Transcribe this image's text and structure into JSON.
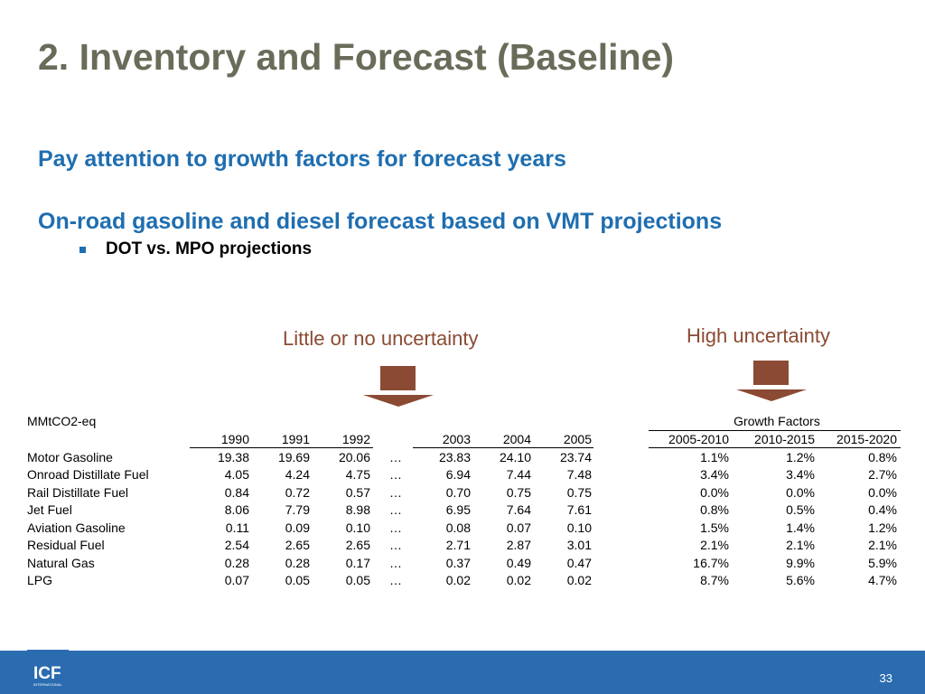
{
  "slide": {
    "title": "2. Inventory and Forecast (Baseline)",
    "subheading_1": "Pay attention to growth factors for forecast years",
    "subheading_2": "On-road gasoline and diesel forecast based on VMT projections",
    "bullet": "DOT vs. MPO projections",
    "label_low": "Little or no uncertainty",
    "label_high": "High uncertainty",
    "page_number": "33",
    "logo_text": "ICF",
    "logo_subtext": "INTERNATIONAL",
    "colors": {
      "title": "#6b6b5a",
      "heading": "#1f6eb0",
      "arrow": "#8b4a34",
      "footer": "#2b6cb0"
    }
  },
  "table": {
    "unit_label": "MMtCO2-eq",
    "growth_header": "Growth Factors",
    "ellipsis": "…",
    "year_headers": [
      "1990",
      "1991",
      "1992",
      "2003",
      "2004",
      "2005"
    ],
    "growth_headers": [
      "2005-2010",
      "2010-2015",
      "2015-2020"
    ],
    "rows": [
      {
        "name": "Motor Gasoline",
        "values": [
          "19.38",
          "19.69",
          "20.06",
          "23.83",
          "24.10",
          "23.74"
        ],
        "growth": [
          "1.1%",
          "1.2%",
          "0.8%"
        ]
      },
      {
        "name": "Onroad Distillate Fuel",
        "values": [
          "4.05",
          "4.24",
          "4.75",
          "6.94",
          "7.44",
          "7.48"
        ],
        "growth": [
          "3.4%",
          "3.4%",
          "2.7%"
        ]
      },
      {
        "name": "Rail Distillate Fuel",
        "values": [
          "0.84",
          "0.72",
          "0.57",
          "0.70",
          "0.75",
          "0.75"
        ],
        "growth": [
          "0.0%",
          "0.0%",
          "0.0%"
        ]
      },
      {
        "name": "Jet Fuel",
        "values": [
          "8.06",
          "7.79",
          "8.98",
          "6.95",
          "7.64",
          "7.61"
        ],
        "growth": [
          "0.8%",
          "0.5%",
          "0.4%"
        ]
      },
      {
        "name": "Aviation Gasoline",
        "values": [
          "0.11",
          "0.09",
          "0.10",
          "0.08",
          "0.07",
          "0.10"
        ],
        "growth": [
          "1.5%",
          "1.4%",
          "1.2%"
        ]
      },
      {
        "name": "Residual Fuel",
        "values": [
          "2.54",
          "2.65",
          "2.65",
          "2.71",
          "2.87",
          "3.01"
        ],
        "growth": [
          "2.1%",
          "2.1%",
          "2.1%"
        ]
      },
      {
        "name": "Natural Gas",
        "values": [
          "0.28",
          "0.28",
          "0.17",
          "0.37",
          "0.49",
          "0.47"
        ],
        "growth": [
          "16.7%",
          "9.9%",
          "5.9%"
        ]
      },
      {
        "name": "LPG",
        "values": [
          "0.07",
          "0.05",
          "0.05",
          "0.02",
          "0.02",
          "0.02"
        ],
        "growth": [
          "8.7%",
          "5.6%",
          "4.7%"
        ]
      }
    ]
  }
}
